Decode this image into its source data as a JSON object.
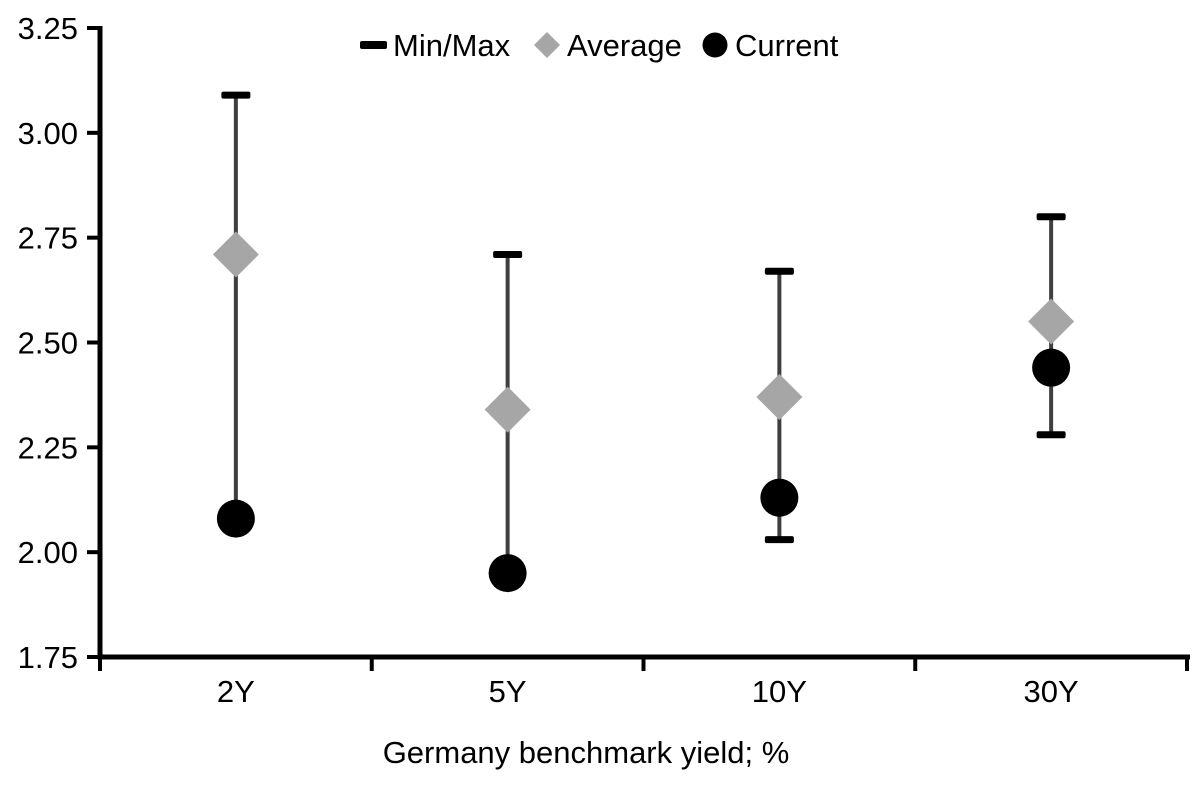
{
  "chart_data": {
    "type": "scatter",
    "subtype": "min-max-range-dot",
    "title": "",
    "xlabel": "Germany benchmark yield; %",
    "ylabel": "",
    "categories": [
      "2Y",
      "5Y",
      "10Y",
      "30Y"
    ],
    "series": [
      {
        "name": "Min/Max",
        "marker": "dash",
        "min": [
          2.08,
          1.95,
          2.03,
          2.28
        ],
        "max": [
          3.09,
          2.71,
          2.67,
          2.8
        ]
      },
      {
        "name": "Average",
        "marker": "diamond",
        "values": [
          2.71,
          2.34,
          2.37,
          2.55
        ]
      },
      {
        "name": "Current",
        "marker": "circle",
        "values": [
          2.08,
          1.95,
          2.13,
          2.44
        ]
      }
    ],
    "ylim": [
      1.75,
      3.25
    ],
    "yticks": [
      "1.75",
      "2.00",
      "2.25",
      "2.50",
      "2.75",
      "3.00",
      "3.25"
    ],
    "grid": false,
    "legend_position": "top-center",
    "colors": {
      "axis": "#000000",
      "text": "#000000",
      "range_line": "#3f3f3f",
      "minmax_cap": "#000000",
      "average_marker": "#a6a6a6",
      "current_marker": "#000000"
    }
  }
}
